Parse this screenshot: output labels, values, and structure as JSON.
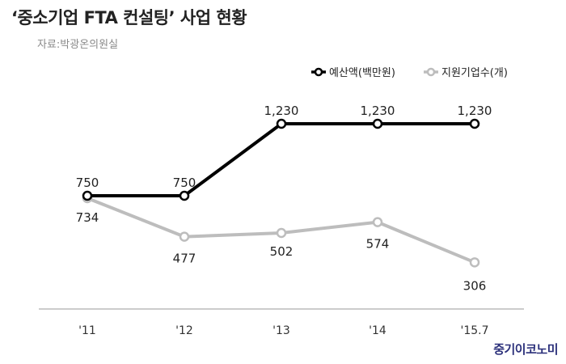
{
  "header": {
    "title": "‘중소기업 FTA 컨설팅’ 사업  현황",
    "source": "자료:박광온의원실"
  },
  "branding": {
    "logo_text": "중기이코노미"
  },
  "colors": {
    "budget": "#000000",
    "companies": "#bdbdbd",
    "axis": "#999999",
    "logo": "#2a2f7a"
  },
  "chart_data": {
    "type": "line",
    "categories": [
      "'11",
      "'12",
      "'13",
      "'14",
      "'15.7"
    ],
    "series": [
      {
        "name": "예산액(백만원)",
        "values": [
          750,
          750,
          1230,
          1230,
          1230
        ]
      },
      {
        "name": "지원기업수(개)",
        "values": [
          734,
          477,
          502,
          574,
          306
        ]
      }
    ],
    "value_labels": {
      "budget": [
        "750",
        "750",
        "1,230",
        "1,230",
        "1,230"
      ],
      "companies": [
        "734",
        "477",
        "502",
        "574",
        "306"
      ]
    },
    "ylim": [
      0,
      1500
    ],
    "legend_position": "top-right",
    "grid": false
  }
}
